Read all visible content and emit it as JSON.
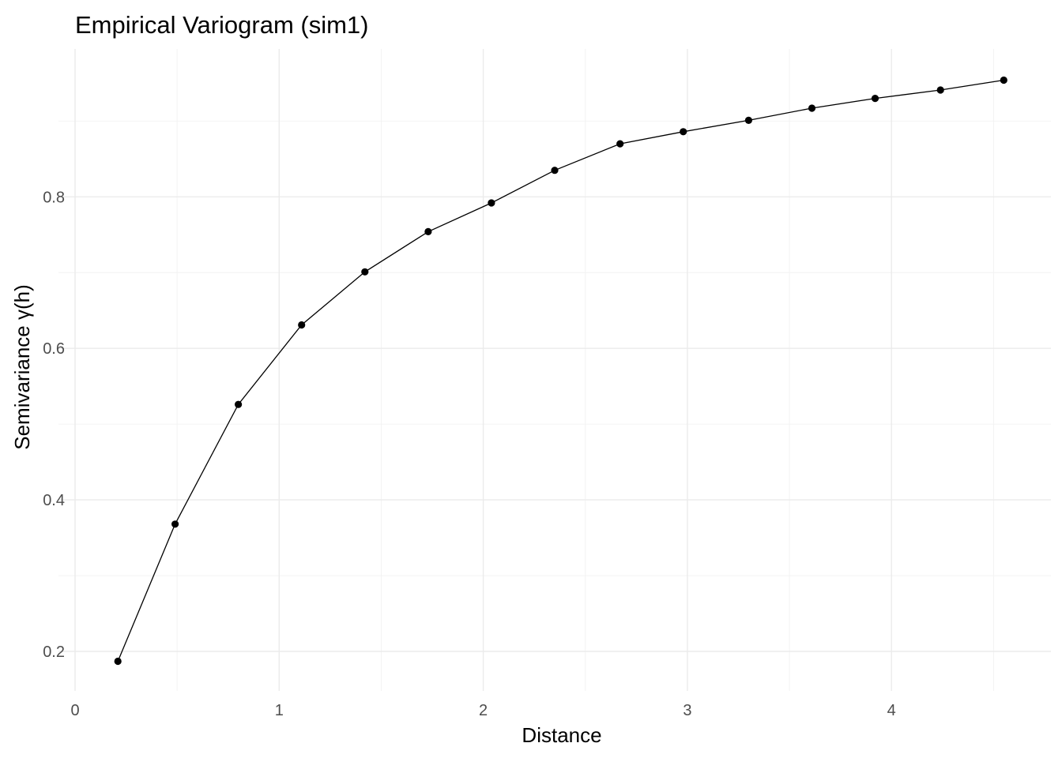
{
  "chart_data": {
    "type": "line",
    "title": "Empirical Variogram (sim1)",
    "xlabel": "Distance",
    "ylabel": "Semivariance γ(h)",
    "xlim": [
      0,
      4.6
    ],
    "ylim": [
      0.18,
      0.96
    ],
    "x_ticks": [
      0,
      1,
      2,
      3,
      4
    ],
    "y_ticks": [
      0.2,
      0.4,
      0.6,
      0.8
    ],
    "x_tick_labels": [
      "0",
      "1",
      "2",
      "3",
      "4"
    ],
    "y_tick_labels": [
      "0.2",
      "0.4",
      "0.6",
      "0.8"
    ],
    "grid": true,
    "legend": "none",
    "series": [
      {
        "color": "#000000",
        "x": [
          0.21,
          0.49,
          0.8,
          1.11,
          1.42,
          1.73,
          2.04,
          2.35,
          2.67,
          2.98,
          3.3,
          3.61,
          3.92,
          4.24,
          4.55
        ],
        "y": [
          0.187,
          0.368,
          0.526,
          0.631,
          0.701,
          0.754,
          0.792,
          0.835,
          0.87,
          0.886,
          0.901,
          0.917,
          0.93,
          0.941,
          0.954
        ]
      }
    ]
  }
}
